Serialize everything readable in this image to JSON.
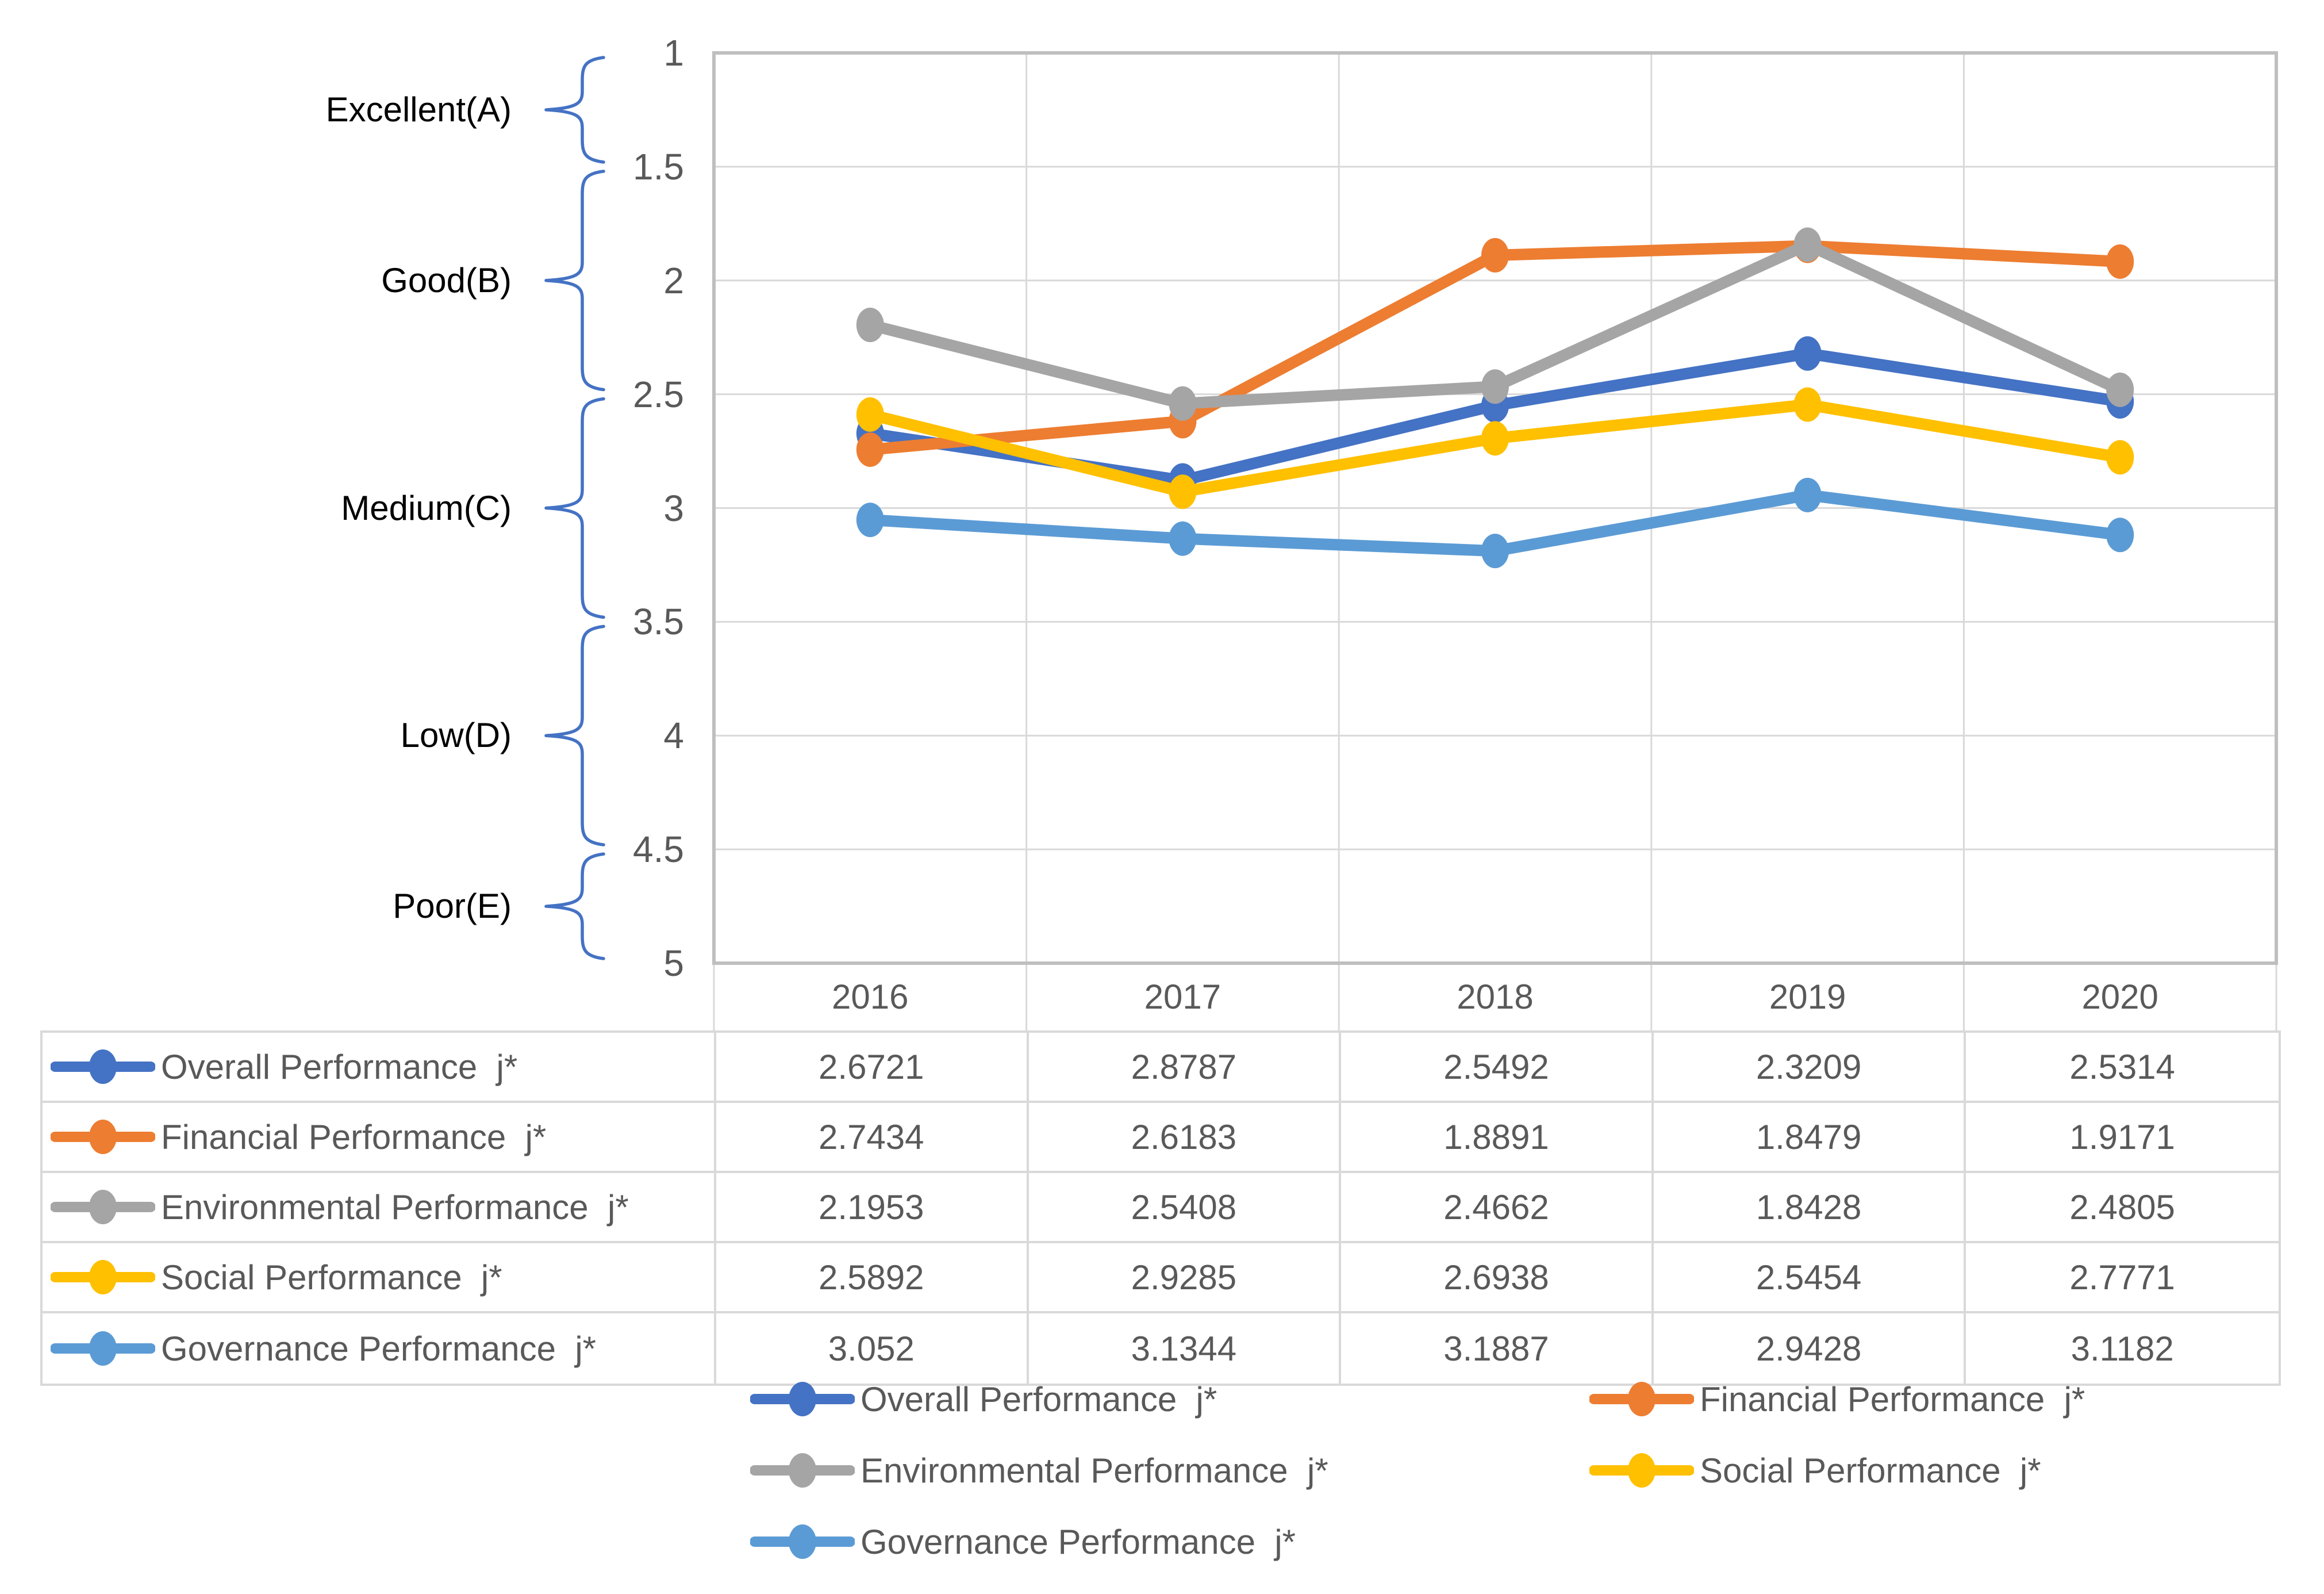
{
  "chart_data": {
    "type": "line",
    "title": "",
    "x_labels": [
      "2016",
      "2017",
      "2018",
      "2019",
      "2020"
    ],
    "y_axis": {
      "min": 1,
      "max": 5,
      "step": 0.5,
      "inverted": true,
      "tick_labels": [
        "1",
        "1.5",
        "2",
        "2.5",
        "3",
        "3.5",
        "4",
        "4.5",
        "5"
      ]
    },
    "rating_bands": [
      {
        "label": "Excellent(A)",
        "from": 1,
        "to": 1.5
      },
      {
        "label": "Good(B)",
        "from": 1.5,
        "to": 2.5
      },
      {
        "label": "Medium(C)",
        "from": 2.5,
        "to": 3.5
      },
      {
        "label": "Low(D)",
        "from": 3.5,
        "to": 4.5
      },
      {
        "label": "Poor(E)",
        "from": 4.5,
        "to": 5
      }
    ],
    "series": [
      {
        "name": "Overall Performance  j*",
        "color": "#4472C4",
        "values": [
          2.6721,
          2.8787,
          2.5492,
          2.3209,
          2.5314
        ],
        "cells": [
          "2.6721",
          "2.8787",
          "2.5492",
          "2.3209",
          "2.5314"
        ]
      },
      {
        "name": "Financial Performance  j*",
        "color": "#ED7D31",
        "values": [
          2.7434,
          2.6183,
          1.8891,
          1.8479,
          1.9171
        ],
        "cells": [
          "2.7434",
          "2.6183",
          "1.8891",
          "1.8479",
          "1.9171"
        ]
      },
      {
        "name": "Environmental Performance  j*",
        "color": "#A5A5A5",
        "values": [
          2.1953,
          2.5408,
          2.4662,
          1.8428,
          2.4805
        ],
        "cells": [
          "2.1953",
          "2.5408",
          "2.4662",
          "1.8428",
          "2.4805"
        ]
      },
      {
        "name": "Social Performance  j*",
        "color": "#FFC000",
        "values": [
          2.5892,
          2.9285,
          2.6938,
          2.5454,
          2.7771
        ],
        "cells": [
          "2.5892",
          "2.9285",
          "2.6938",
          "2.5454",
          "2.7771"
        ]
      },
      {
        "name": "Governance Performance  j*",
        "color": "#5B9BD5",
        "values": [
          3.052,
          3.1344,
          3.1887,
          2.9428,
          3.1182
        ],
        "cells": [
          "3.052",
          "3.1344",
          "3.1887",
          "2.9428",
          "3.1182"
        ]
      }
    ],
    "legend_position": "bottom",
    "legend_rows": [
      [
        0,
        1
      ],
      [
        2,
        3
      ],
      [
        4
      ]
    ],
    "grid": true
  },
  "colors": {
    "gridline": "#D9D9D9",
    "plot_border": "#BFBFBF",
    "brace": "#4472C4",
    "axis_text": "#595959",
    "rating_text": "#000000",
    "table_border": "#D9D9D9",
    "background": "#FFFFFF"
  }
}
